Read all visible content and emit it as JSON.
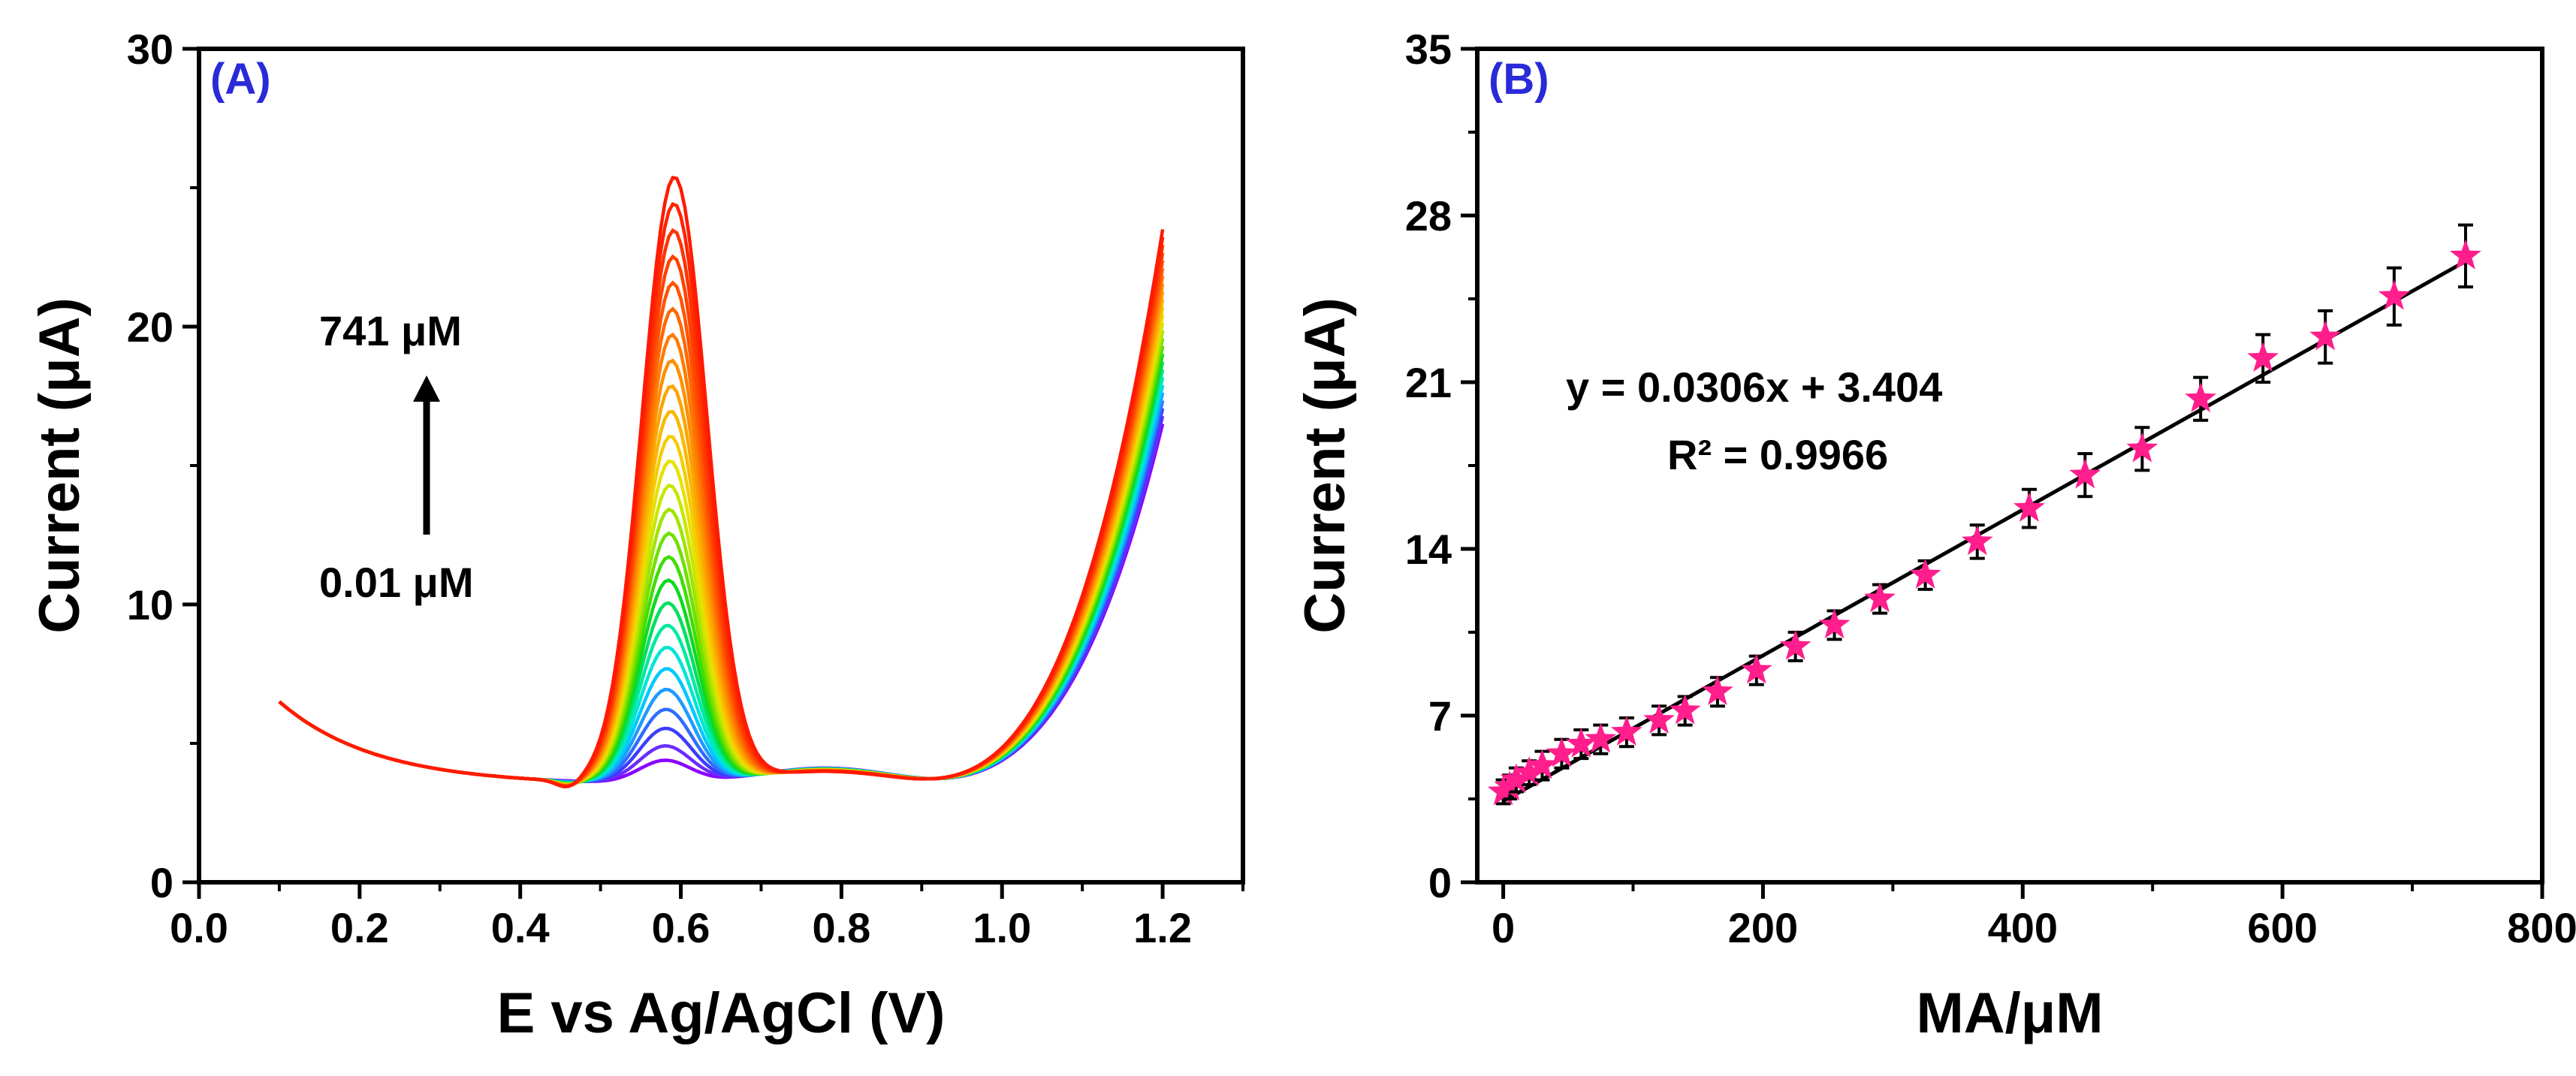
{
  "chart_data": [
    {
      "type": "line",
      "panel_label": "(A)",
      "xlabel": "E vs Ag/AgCl (V)",
      "ylabel": "Current (μA)",
      "xlim": [
        0.0,
        1.3
      ],
      "ylim": [
        0,
        30
      ],
      "xticks": [
        "0.0",
        "0.2",
        "0.4",
        "0.6",
        "0.8",
        "1.0",
        "1.2"
      ],
      "yticks": [
        "0",
        "10",
        "20",
        "30"
      ],
      "annotations": {
        "top": "741 μM",
        "bottom": "0.01 μM"
      },
      "curve_count": 26,
      "peak_potential": 0.58,
      "peak_currents_min": 4.2,
      "peak_currents_max": 25.2,
      "colors": [
        "#8a00ff",
        "#6a2cff",
        "#3c3cff",
        "#2f6cff",
        "#1f9bff",
        "#00c8ff",
        "#00e5d4",
        "#00eaa0",
        "#00e060",
        "#10d820",
        "#40dd00",
        "#70e000",
        "#a0e400",
        "#c8e600",
        "#e8e000",
        "#f5cc00",
        "#f9b800",
        "#fca400",
        "#fd9000",
        "#fe7c00",
        "#ff6800",
        "#ff5400",
        "#ff4200",
        "#ff3300",
        "#ff2400",
        "#ff1a00"
      ],
      "grid": false
    },
    {
      "type": "scatter",
      "panel_label": "(B)",
      "xlabel": "MA/μM",
      "ylabel": "Current (μA)",
      "xlim": [
        -20,
        800
      ],
      "ylim": [
        0,
        35
      ],
      "xticks": [
        "0",
        "200",
        "400",
        "600",
        "800"
      ],
      "yticks": [
        "0",
        "7",
        "14",
        "21",
        "28",
        "35"
      ],
      "equation": "y = 0.0306x + 3.404",
      "r_squared": "R² = 0.9966",
      "fit": {
        "slope": 0.0306,
        "intercept": 3.404
      },
      "marker_color": "#ff1e8c",
      "x": [
        0.01,
        5,
        10,
        20,
        30,
        45,
        60,
        75,
        95,
        120,
        140,
        165,
        195,
        225,
        255,
        290,
        325,
        365,
        405,
        448,
        492,
        537,
        585,
        633,
        686,
        741
      ],
      "y": [
        3.8,
        4.0,
        4.3,
        4.6,
        4.9,
        5.4,
        5.8,
        6.0,
        6.3,
        6.8,
        7.2,
        8.0,
        8.9,
        9.9,
        10.8,
        11.9,
        12.9,
        14.3,
        15.7,
        17.1,
        18.2,
        20.3,
        22.0,
        22.9,
        24.6,
        26.3
      ],
      "error": [
        0.5,
        0.5,
        0.5,
        0.5,
        0.6,
        0.6,
        0.6,
        0.6,
        0.6,
        0.6,
        0.6,
        0.6,
        0.6,
        0.6,
        0.6,
        0.6,
        0.6,
        0.7,
        0.8,
        0.9,
        0.9,
        0.9,
        1.0,
        1.1,
        1.2,
        1.3
      ],
      "grid": false
    }
  ]
}
